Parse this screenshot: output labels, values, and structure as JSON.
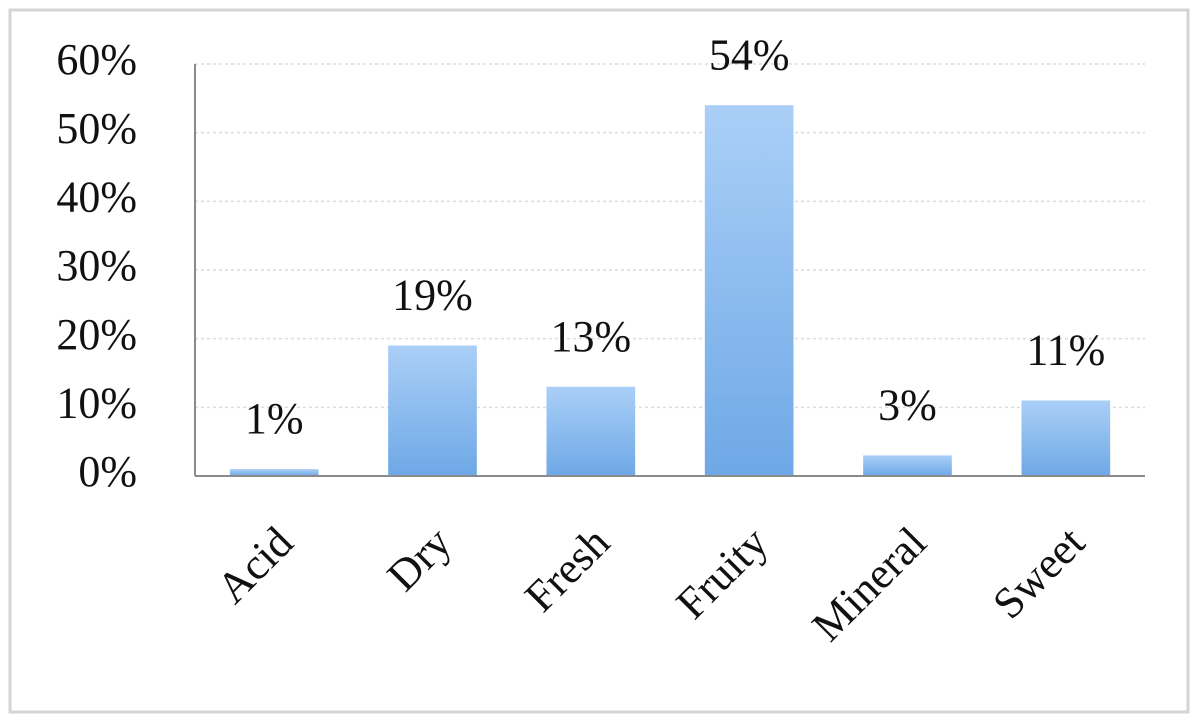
{
  "chart_data": {
    "type": "bar",
    "categories": [
      "Acid",
      "Dry",
      "Fresh",
      "Fruity",
      "Mineral",
      "Sweet"
    ],
    "values": [
      1,
      19,
      13,
      54,
      3,
      11
    ],
    "value_labels": [
      "1%",
      "19%",
      "13%",
      "54%",
      "3%",
      "11%"
    ],
    "color": "#6ea8e6",
    "ylim": [
      0,
      60
    ],
    "yticks": [
      {
        "value": 0,
        "label": "0%"
      },
      {
        "value": 10,
        "label": "10%"
      },
      {
        "value": 20,
        "label": "20%"
      },
      {
        "value": 30,
        "label": "30%"
      },
      {
        "value": 40,
        "label": "40%"
      },
      {
        "value": 50,
        "label": "50%"
      },
      {
        "value": 60,
        "label": "60%"
      }
    ],
    "grid": true
  }
}
